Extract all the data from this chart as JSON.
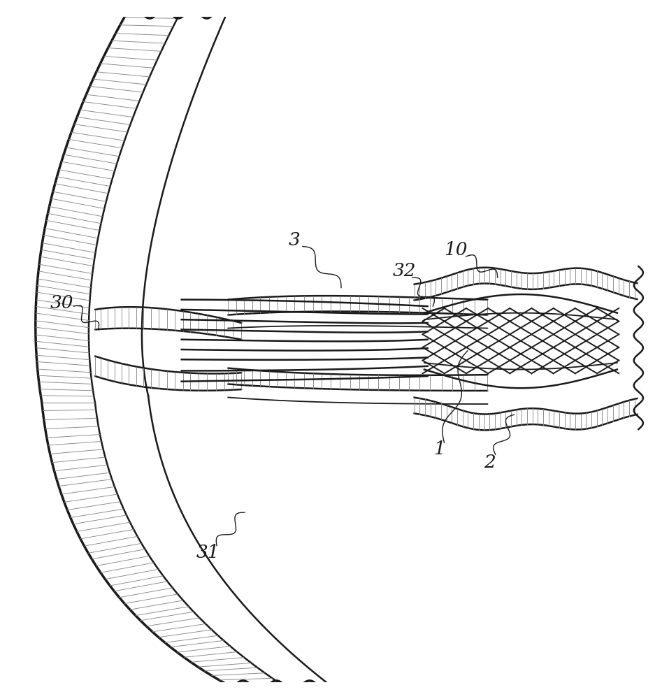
{
  "bg_color": "#ffffff",
  "line_color": "#1a1a1a",
  "hatch_color": "#888888",
  "figsize": [
    9.57,
    10.0
  ],
  "dpi": 100,
  "lw_thick": 2.5,
  "lw_med": 1.8,
  "lw_thin": 1.3,
  "label_fontsize": 19
}
